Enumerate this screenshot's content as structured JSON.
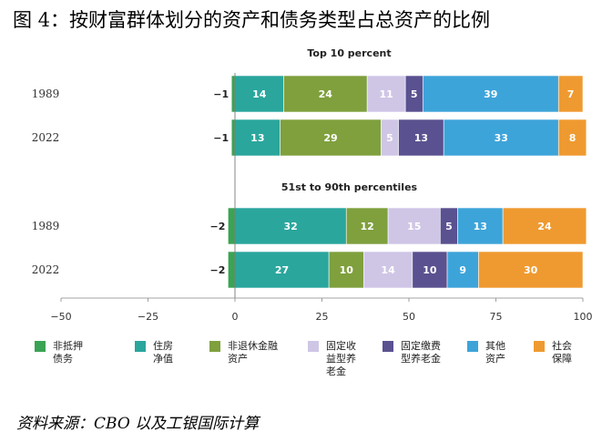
{
  "title": "图 4：按财富群体划分的资产和债务类型占总资产的比例",
  "source": "资料来源：CBO 以及工银国际计算",
  "chart_data": {
    "type": "bar",
    "orientation": "horizontal-stacked",
    "xlim": [
      -50,
      100
    ],
    "x_ticks": [
      "−50",
      "−25",
      "0",
      "25",
      "50",
      "75",
      "100"
    ],
    "legend_position": "bottom",
    "grid": false,
    "series": [
      {
        "name": "非抵押债务",
        "color": "#3aa354"
      },
      {
        "name": "住房净值",
        "color": "#2aa69d"
      },
      {
        "name": "非退休金融资产",
        "color": "#7fa03d"
      },
      {
        "name": "固定收益型养老金",
        "color": "#cfc6e6"
      },
      {
        "name": "固定缴费型养老金",
        "color": "#5a5190"
      },
      {
        "name": "其他资产",
        "color": "#3da4d9"
      },
      {
        "name": "社会保障",
        "color": "#ef9a30"
      }
    ],
    "panels": [
      {
        "title": "Top 10 percent",
        "rows": [
          {
            "category": "1989",
            "negative_label": "−1",
            "values": [
              -1,
              14,
              24,
              11,
              5,
              39,
              7
            ],
            "labels": [
              "",
              "14",
              "24",
              "11",
              "5",
              "39",
              "7"
            ]
          },
          {
            "category": "2022",
            "negative_label": "−1",
            "values": [
              -1,
              13,
              29,
              5,
              13,
              33,
              8
            ],
            "labels": [
              "",
              "13",
              "29",
              "5",
              "13",
              "33",
              "8"
            ]
          }
        ]
      },
      {
        "title": "51st to 90th percentiles",
        "rows": [
          {
            "category": "1989",
            "negative_label": "−2",
            "values": [
              -2,
              32,
              12,
              15,
              5,
              13,
              24
            ],
            "labels": [
              "",
              "32",
              "12",
              "15",
              "5",
              "13",
              "24"
            ]
          },
          {
            "category": "2022",
            "negative_label": "−2",
            "values": [
              -2,
              27,
              10,
              14,
              10,
              9,
              30
            ],
            "labels": [
              "",
              "27",
              "10",
              "14",
              "10",
              "9",
              "30"
            ]
          }
        ]
      }
    ]
  }
}
